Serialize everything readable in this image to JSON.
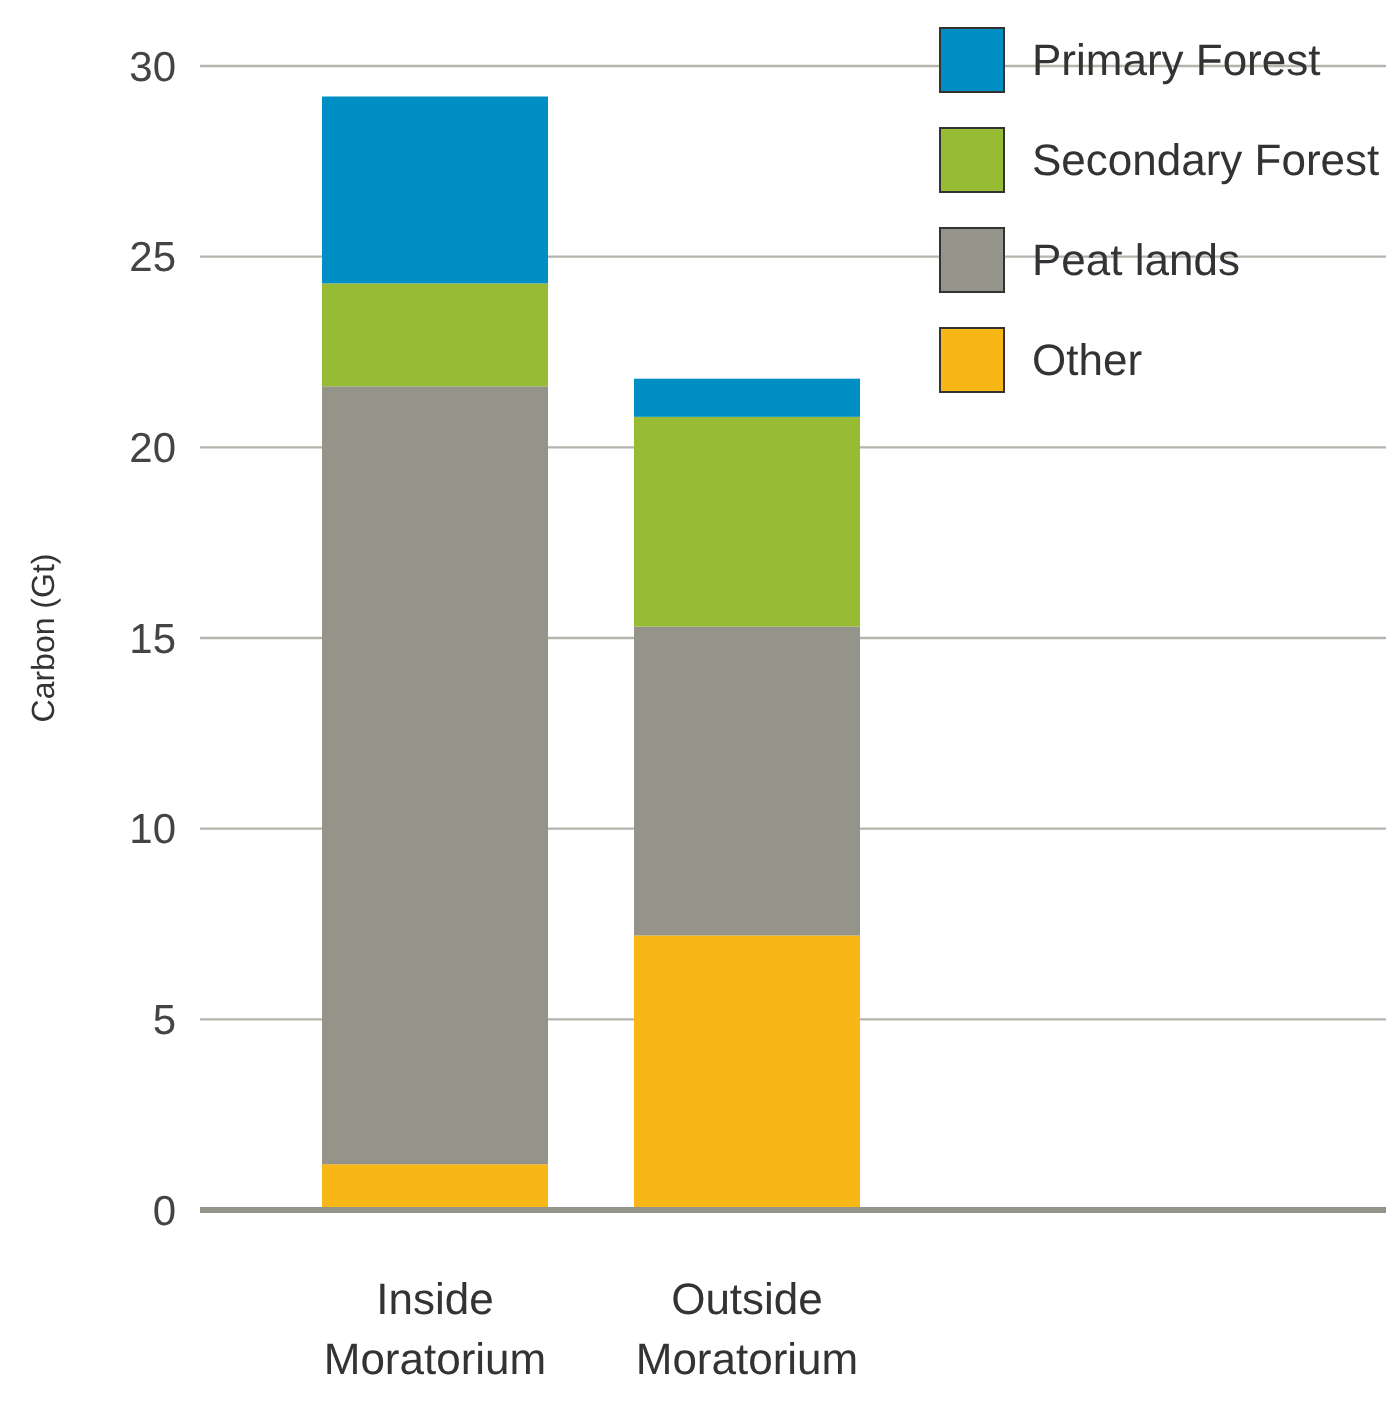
{
  "chart_data": {
    "type": "bar",
    "stacked": true,
    "ylabel": "Carbon (Gt)",
    "categories": [
      "Inside Moratorium",
      "Outside Moratorium"
    ],
    "series": [
      {
        "name": "Other",
        "color": "#f9b617",
        "values": [
          1.2,
          7.2
        ]
      },
      {
        "name": "Peat lands",
        "color": "#94948a",
        "values": [
          20.4,
          8.1
        ]
      },
      {
        "name": "Secondary Forest",
        "color": "#97bc33",
        "values": [
          2.7,
          5.5
        ]
      },
      {
        "name": "Primary Forest",
        "color": "#008fc4",
        "values": [
          4.9,
          1.0
        ]
      }
    ],
    "ylim": [
      0,
      30
    ],
    "yticks": [
      0,
      5,
      10,
      15,
      20,
      25,
      30
    ],
    "grid": "y",
    "legend": "top right"
  }
}
